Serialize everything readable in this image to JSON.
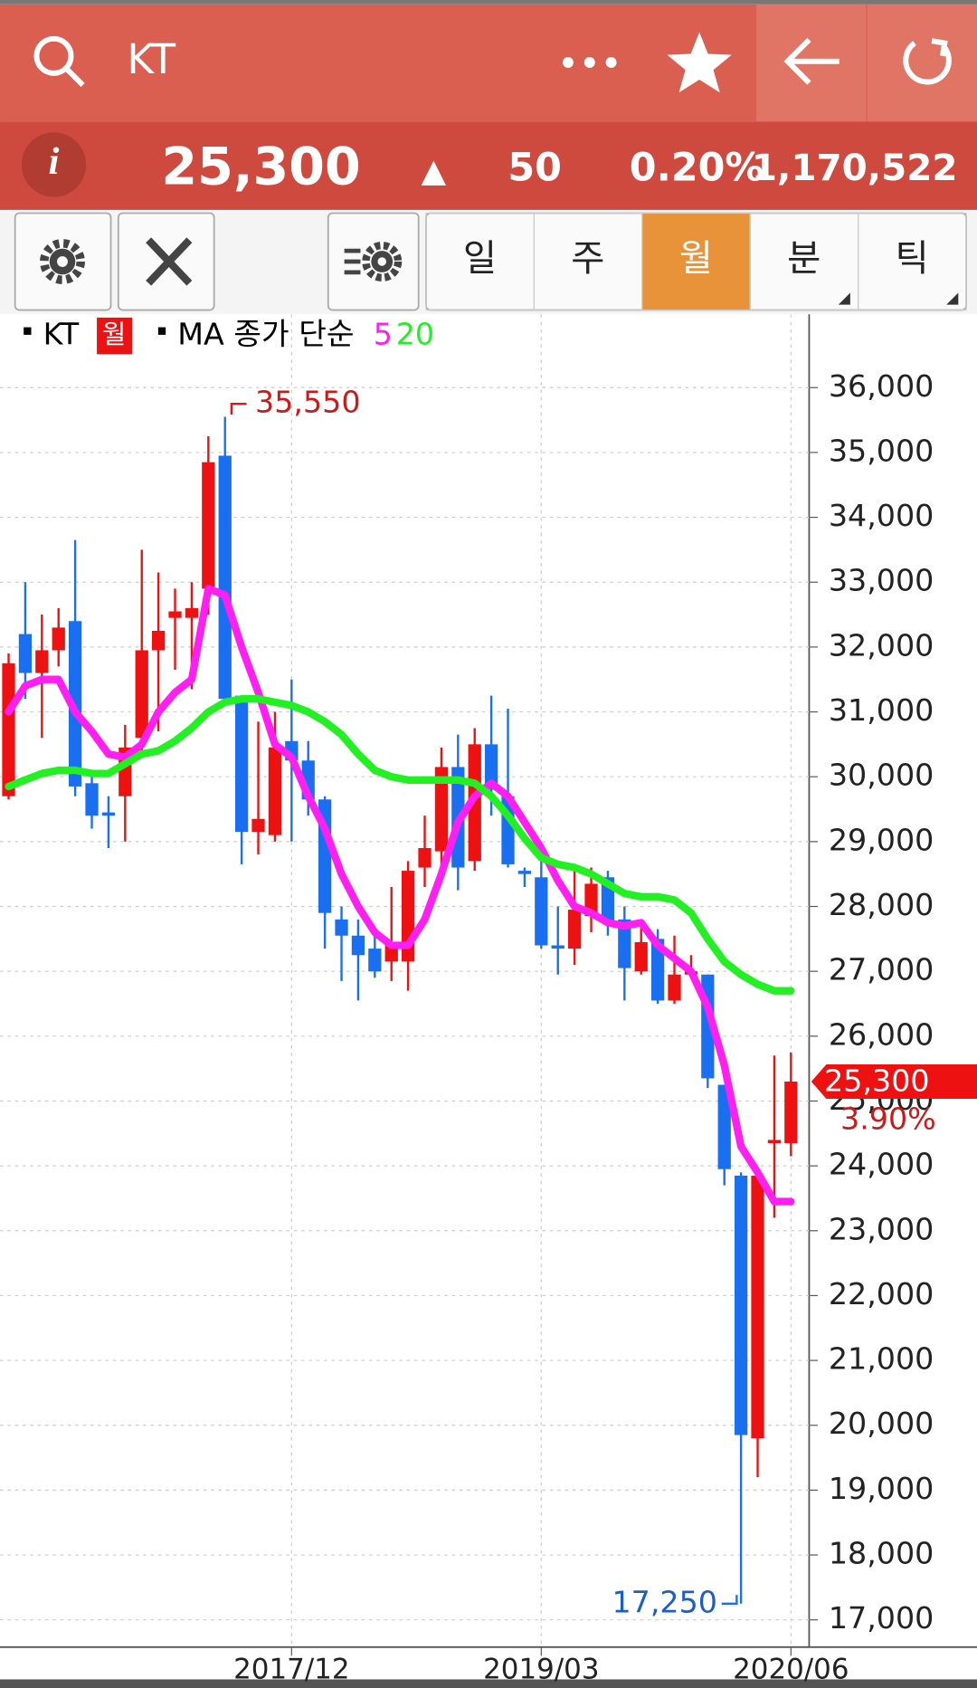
{
  "header": {
    "title": "KT",
    "info": "i",
    "price": "25,300",
    "change_arrow": "▲",
    "change": "50",
    "change_pct": "0.20%",
    "volume": "1,170,522"
  },
  "tabs": [
    "일",
    "주",
    "월",
    "분",
    "틱"
  ],
  "chart_data": {
    "type": "candlestick",
    "legend_name": "KT",
    "period": "월",
    "ma_label": "MA 종가 단순",
    "up_color": "#ee1111",
    "down_color": "#1a6ff0",
    "categories": [
      null,
      null,
      null,
      null,
      null,
      null,
      null,
      null,
      null,
      null,
      null,
      null,
      null,
      null,
      null,
      null,
      null,
      "2017/12",
      null,
      null,
      null,
      null,
      null,
      null,
      null,
      null,
      null,
      null,
      null,
      null,
      null,
      null,
      "2019/03",
      null,
      null,
      null,
      null,
      null,
      null,
      null,
      null,
      null,
      null,
      null,
      null,
      null,
      null,
      "2020/06"
    ],
    "open": [
      29700,
      32200,
      31600,
      31950,
      32400,
      29900,
      29450,
      29700,
      30600,
      31950,
      32450,
      32450,
      32900,
      34950,
      31250,
      29150,
      29100,
      30550,
      30250,
      29650,
      27800,
      27550,
      27350,
      27150,
      27150,
      28600,
      28850,
      30150,
      28700,
      30500,
      29700,
      28550,
      28450,
      27400,
      27350,
      27850,
      28450,
      27800,
      27000,
      27500,
      26550,
      26950,
      26950,
      25250,
      23850,
      19800,
      24350,
      24350
    ],
    "high": [
      31900,
      33000,
      32500,
      32600,
      33650,
      30000,
      29700,
      30800,
      33500,
      33150,
      32900,
      33000,
      35250,
      35550,
      31250,
      30850,
      31000,
      31500,
      30550,
      29700,
      28000,
      27800,
      27550,
      28300,
      28700,
      29400,
      30450,
      30650,
      30750,
      31250,
      31050,
      28600,
      28900,
      28000,
      28600,
      28600,
      28550,
      28000,
      27750,
      27650,
      27550,
      27250,
      26950,
      25250,
      23900,
      23850,
      25700,
      25750
    ],
    "low": [
      29650,
      31200,
      30600,
      31700,
      29700,
      29200,
      28900,
      29000,
      30400,
      30700,
      31650,
      31350,
      32500,
      31100,
      28650,
      28800,
      29000,
      29000,
      29400,
      27350,
      26850,
      26550,
      26900,
      26850,
      26700,
      28300,
      28400,
      28250,
      28550,
      29400,
      28600,
      28300,
      27350,
      26950,
      27100,
      27600,
      27550,
      26550,
      26950,
      26500,
      26500,
      26900,
      25200,
      23700,
      17250,
      19200,
      23200,
      24150
    ],
    "close": [
      31750,
      31600,
      31950,
      32300,
      29850,
      29400,
      29400,
      30450,
      31950,
      32250,
      32550,
      32600,
      34850,
      31200,
      29150,
      29350,
      30450,
      30250,
      29650,
      27900,
      27550,
      27250,
      27000,
      27400,
      28550,
      28900,
      30150,
      28600,
      30500,
      29800,
      28650,
      28500,
      27400,
      27350,
      27950,
      28350,
      27750,
      27050,
      27450,
      26550,
      26950,
      27000,
      25350,
      23950,
      19850,
      23850,
      24400,
      25300
    ],
    "series": [
      {
        "name": "5",
        "color": "#ff1ff0",
        "values": [
          31000,
          31400,
          31500,
          31500,
          31000,
          30700,
          30350,
          30300,
          30500,
          31000,
          31300,
          31500,
          32900,
          32800,
          32000,
          31300,
          30500,
          30300,
          29700,
          29200,
          28500,
          28000,
          27600,
          27400,
          27400,
          27800,
          28500,
          29300,
          29700,
          29900,
          29700,
          29300,
          28900,
          28400,
          28000,
          27900,
          27750,
          27700,
          27750,
          27400,
          27200,
          27000,
          26450,
          25550,
          24300,
          23900,
          23450,
          23450
        ]
      },
      {
        "name": "20",
        "color": "#22f022",
        "values": [
          29850,
          29950,
          30050,
          30100,
          30100,
          30050,
          30050,
          30200,
          30350,
          30400,
          30550,
          30750,
          31000,
          31150,
          31200,
          31200,
          31150,
          31100,
          31000,
          30850,
          30650,
          30350,
          30100,
          30000,
          29950,
          29950,
          29950,
          29950,
          29900,
          29700,
          29400,
          29050,
          28750,
          28650,
          28600,
          28500,
          28350,
          28200,
          28150,
          28150,
          28100,
          27900,
          27500,
          27150,
          26950,
          26800,
          26700,
          26700
        ]
      }
    ],
    "ylim": [
      16580,
      37080
    ],
    "yticks": [
      {
        "value": 17000,
        "label": "17,000"
      },
      {
        "value": 18000,
        "label": "18,000"
      },
      {
        "value": 19000,
        "label": "19,000"
      },
      {
        "value": 20000,
        "label": "20,000"
      },
      {
        "value": 21000,
        "label": "21,000"
      },
      {
        "value": 22000,
        "label": "22,000"
      },
      {
        "value": 23000,
        "label": "23,000"
      },
      {
        "value": 24000,
        "label": "24,000"
      },
      {
        "value": 25000,
        "label": "25,000"
      },
      {
        "value": 26000,
        "label": "26,000"
      },
      {
        "value": 27000,
        "label": "27,000"
      },
      {
        "value": 28000,
        "label": "28,000"
      },
      {
        "value": 29000,
        "label": "29,000"
      },
      {
        "value": 30000,
        "label": "30,000"
      },
      {
        "value": 31000,
        "label": "31,000"
      },
      {
        "value": 32000,
        "label": "32,000"
      },
      {
        "value": 33000,
        "label": "33,000"
      },
      {
        "value": 34000,
        "label": "34,000"
      },
      {
        "value": 35000,
        "label": "35,000"
      },
      {
        "value": 36000,
        "label": "36,000"
      }
    ],
    "grid": true,
    "high_label": {
      "value": 35550,
      "label": "35,550"
    },
    "low_label": {
      "value": 17250,
      "label": "17,250"
    },
    "last_price": {
      "value": 25300,
      "label": "25,300"
    },
    "last_change": "3.90%"
  }
}
